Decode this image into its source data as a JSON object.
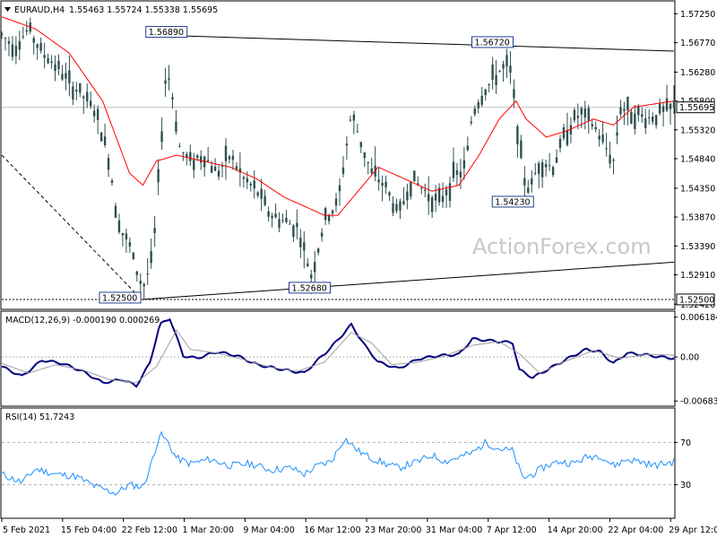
{
  "chart_data": [
    {
      "type": "candlestick",
      "header": {
        "symbol": "EURAUD,H4",
        "ohlc": "1.55463 1.55724 1.55338 1.55695"
      },
      "watermark": "ActionForex.com",
      "ylim": [
        1.5235,
        1.5745
      ],
      "y_ticks": [
        "1.57250",
        "1.56770",
        "1.56280",
        "1.55800",
        "1.55320",
        "1.54840",
        "1.54350",
        "1.53870",
        "1.53390",
        "1.52910",
        "1.52420"
      ],
      "price_label": "1.55695",
      "support_label": "1.52500",
      "annotations": [
        {
          "text": "1.56890",
          "value": 1.5689,
          "t": 0.245
        },
        {
          "text": "1.56720",
          "value": 1.5672,
          "t": 0.73
        },
        {
          "text": "1.54230",
          "value": 1.5423,
          "t": 0.775
        },
        {
          "text": "1.52500",
          "value": 1.525,
          "t": 0.208
        },
        {
          "text": "1.52680",
          "value": 1.5268,
          "t": 0.458
        }
      ],
      "lines": [
        {
          "name": "upper-trendline",
          "from": [
            0.245,
            1.5689
          ],
          "to": [
            1.0,
            1.5663
          ]
        },
        {
          "name": "lower-trendline",
          "from": [
            0.208,
            1.525
          ],
          "to": [
            1.0,
            1.5312
          ]
        },
        {
          "name": "support-dotted",
          "from": [
            0.0,
            1.525
          ],
          "to": [
            1.0,
            1.525
          ]
        },
        {
          "name": "dashed-trend",
          "from": [
            0.0,
            1.549
          ],
          "to": [
            0.208,
            1.525
          ]
        }
      ],
      "close_path": [
        [
          0.0,
          1.569
        ],
        [
          0.02,
          1.567
        ],
        [
          0.04,
          1.57
        ],
        [
          0.06,
          1.566
        ],
        [
          0.08,
          1.564
        ],
        [
          0.1,
          1.561
        ],
        [
          0.12,
          1.559
        ],
        [
          0.14,
          1.556
        ],
        [
          0.16,
          1.548
        ],
        [
          0.17,
          1.54
        ],
        [
          0.18,
          1.536
        ],
        [
          0.19,
          1.534
        ],
        [
          0.2,
          1.53
        ],
        [
          0.21,
          1.527
        ],
        [
          0.225,
          1.532
        ],
        [
          0.235,
          1.548
        ],
        [
          0.245,
          1.564
        ],
        [
          0.255,
          1.558
        ],
        [
          0.265,
          1.55
        ],
        [
          0.28,
          1.548
        ],
        [
          0.3,
          1.549
        ],
        [
          0.32,
          1.546
        ],
        [
          0.34,
          1.549
        ],
        [
          0.36,
          1.545
        ],
        [
          0.38,
          1.543
        ],
        [
          0.4,
          1.539
        ],
        [
          0.42,
          1.538
        ],
        [
          0.44,
          1.537
        ],
        [
          0.46,
          1.529
        ],
        [
          0.47,
          1.533
        ],
        [
          0.48,
          1.538
        ],
        [
          0.5,
          1.541
        ],
        [
          0.52,
          1.556
        ],
        [
          0.535,
          1.551
        ],
        [
          0.55,
          1.546
        ],
        [
          0.57,
          1.544
        ],
        [
          0.59,
          1.539
        ],
        [
          0.61,
          1.545
        ],
        [
          0.63,
          1.543
        ],
        [
          0.65,
          1.541
        ],
        [
          0.67,
          1.545
        ],
        [
          0.69,
          1.547
        ],
        [
          0.7,
          1.556
        ],
        [
          0.72,
          1.56
        ],
        [
          0.74,
          1.563
        ],
        [
          0.755,
          1.564
        ],
        [
          0.765,
          1.556
        ],
        [
          0.775,
          1.546
        ],
        [
          0.785,
          1.543
        ],
        [
          0.8,
          1.548
        ],
        [
          0.82,
          1.547
        ],
        [
          0.84,
          1.553
        ],
        [
          0.86,
          1.556
        ],
        [
          0.88,
          1.554
        ],
        [
          0.9,
          1.55
        ],
        [
          0.91,
          1.548
        ],
        [
          0.92,
          1.557
        ],
        [
          0.94,
          1.556
        ],
        [
          0.96,
          1.555
        ],
        [
          0.98,
          1.556
        ],
        [
          1.0,
          1.5569
        ]
      ],
      "ma_path": [
        [
          0.0,
          1.572
        ],
        [
          0.05,
          1.57
        ],
        [
          0.1,
          1.566
        ],
        [
          0.15,
          1.558
        ],
        [
          0.19,
          1.546
        ],
        [
          0.21,
          1.544
        ],
        [
          0.23,
          1.548
        ],
        [
          0.26,
          1.549
        ],
        [
          0.3,
          1.548
        ],
        [
          0.34,
          1.547
        ],
        [
          0.38,
          1.545
        ],
        [
          0.42,
          1.542
        ],
        [
          0.46,
          1.54
        ],
        [
          0.48,
          1.539
        ],
        [
          0.5,
          1.539
        ],
        [
          0.53,
          1.543
        ],
        [
          0.56,
          1.547
        ],
        [
          0.6,
          1.545
        ],
        [
          0.64,
          1.543
        ],
        [
          0.68,
          1.544
        ],
        [
          0.71,
          1.549
        ],
        [
          0.74,
          1.555
        ],
        [
          0.765,
          1.558
        ],
        [
          0.78,
          1.555
        ],
        [
          0.81,
          1.552
        ],
        [
          0.84,
          1.553
        ],
        [
          0.88,
          1.555
        ],
        [
          0.91,
          1.554
        ],
        [
          0.94,
          1.557
        ],
        [
          1.0,
          1.558
        ]
      ],
      "x_ticks": [
        "5 Feb 2021",
        "15 Feb 04:00",
        "22 Feb 12:00",
        "1 Mar 20:00",
        "9 Mar 04:00",
        "16 Mar 12:00",
        "23 Mar 20:00",
        "31 Mar 04:00",
        "7 Apr 12:00",
        "14 Apr 20:00",
        "22 Apr 04:00",
        "29 Apr 12:00"
      ],
      "colors": {
        "candle": "#2f4f4f",
        "ma": "#ff0000",
        "label_border": "#1f3f8f",
        "grid": "#c0c0c0"
      }
    },
    {
      "type": "line",
      "title": "MACD(12,26,9) -0.000190 0.000269",
      "ylim": [
        -0.0075,
        0.0067
      ],
      "y_ticks": [
        "0.006184",
        "0.00",
        "-0.006837"
      ],
      "price_label": "0.00",
      "series": [
        {
          "name": "MACD",
          "color": "#000080",
          "points": [
            [
              0.0,
              -0.0015
            ],
            [
              0.03,
              -0.003
            ],
            [
              0.06,
              -0.0005
            ],
            [
              0.09,
              -0.001
            ],
            [
              0.12,
              -0.0022
            ],
            [
              0.15,
              -0.004
            ],
            [
              0.18,
              -0.0035
            ],
            [
              0.2,
              -0.0045
            ],
            [
              0.22,
              -0.001
            ],
            [
              0.235,
              0.005
            ],
            [
              0.25,
              0.006
            ],
            [
              0.27,
              0.0002
            ],
            [
              0.29,
              -0.0002
            ],
            [
              0.32,
              0.0008
            ],
            [
              0.35,
              0.0002
            ],
            [
              0.38,
              -0.0012
            ],
            [
              0.42,
              -0.002
            ],
            [
              0.45,
              -0.0025
            ],
            [
              0.47,
              -0.0005
            ],
            [
              0.49,
              0.0015
            ],
            [
              0.52,
              0.005
            ],
            [
              0.54,
              0.0018
            ],
            [
              0.56,
              -0.0008
            ],
            [
              0.59,
              -0.0018
            ],
            [
              0.62,
              -0.0003
            ],
            [
              0.65,
              0.0002
            ],
            [
              0.68,
              0.0004
            ],
            [
              0.7,
              0.0028
            ],
            [
              0.73,
              0.0025
            ],
            [
              0.76,
              0.0022
            ],
            [
              0.77,
              -0.002
            ],
            [
              0.79,
              -0.0032
            ],
            [
              0.82,
              -0.0015
            ],
            [
              0.85,
              0.0002
            ],
            [
              0.87,
              0.0012
            ],
            [
              0.89,
              0.0008
            ],
            [
              0.91,
              -0.001
            ],
            [
              0.93,
              0.0006
            ],
            [
              0.96,
              0.0003
            ],
            [
              0.98,
              0.0
            ],
            [
              1.0,
              -0.0002
            ]
          ]
        },
        {
          "name": "Signal",
          "color": "#a0a0a0",
          "points": [
            [
              0.0,
              -0.001
            ],
            [
              0.04,
              -0.0025
            ],
            [
              0.08,
              -0.0012
            ],
            [
              0.12,
              -0.002
            ],
            [
              0.16,
              -0.0035
            ],
            [
              0.2,
              -0.004
            ],
            [
              0.23,
              -0.0015
            ],
            [
              0.26,
              0.0042
            ],
            [
              0.28,
              0.0012
            ],
            [
              0.32,
              0.0006
            ],
            [
              0.36,
              -0.0004
            ],
            [
              0.4,
              -0.0016
            ],
            [
              0.44,
              -0.0022
            ],
            [
              0.48,
              -0.0008
            ],
            [
              0.52,
              0.0038
            ],
            [
              0.55,
              0.0022
            ],
            [
              0.58,
              -0.0012
            ],
            [
              0.62,
              -0.0008
            ],
            [
              0.66,
              0.0002
            ],
            [
              0.7,
              0.0018
            ],
            [
              0.74,
              0.0024
            ],
            [
              0.77,
              0.0005
            ],
            [
              0.8,
              -0.0025
            ],
            [
              0.84,
              -0.0006
            ],
            [
              0.88,
              0.001
            ],
            [
              0.92,
              -0.0002
            ],
            [
              0.96,
              0.0004
            ],
            [
              1.0,
              0.0003
            ]
          ]
        }
      ]
    },
    {
      "type": "line",
      "title": "RSI(14) 51.7243",
      "ylim": [
        0,
        100
      ],
      "y_ticks": [
        "70",
        "30"
      ],
      "levels": [
        70,
        30
      ],
      "series": [
        {
          "name": "RSI",
          "color": "#1e90ff",
          "points": [
            [
              0.0,
              40
            ],
            [
              0.03,
              32
            ],
            [
              0.05,
              45
            ],
            [
              0.08,
              40
            ],
            [
              0.11,
              38
            ],
            [
              0.14,
              28
            ],
            [
              0.17,
              22
            ],
            [
              0.19,
              30
            ],
            [
              0.21,
              28
            ],
            [
              0.22,
              45
            ],
            [
              0.235,
              78
            ],
            [
              0.245,
              72
            ],
            [
              0.26,
              55
            ],
            [
              0.28,
              50
            ],
            [
              0.31,
              54
            ],
            [
              0.34,
              48
            ],
            [
              0.37,
              50
            ],
            [
              0.4,
              44
            ],
            [
              0.43,
              46
            ],
            [
              0.45,
              40
            ],
            [
              0.47,
              48
            ],
            [
              0.49,
              52
            ],
            [
              0.51,
              74
            ],
            [
              0.53,
              62
            ],
            [
              0.55,
              55
            ],
            [
              0.57,
              50
            ],
            [
              0.59,
              46
            ],
            [
              0.62,
              52
            ],
            [
              0.64,
              58
            ],
            [
              0.66,
              52
            ],
            [
              0.68,
              56
            ],
            [
              0.7,
              60
            ],
            [
              0.72,
              70
            ],
            [
              0.74,
              64
            ],
            [
              0.76,
              62
            ],
            [
              0.775,
              36
            ],
            [
              0.79,
              40
            ],
            [
              0.81,
              48
            ],
            [
              0.83,
              52
            ],
            [
              0.85,
              50
            ],
            [
              0.87,
              56
            ],
            [
              0.89,
              58
            ],
            [
              0.91,
              48
            ],
            [
              0.93,
              54
            ],
            [
              0.95,
              52
            ],
            [
              0.97,
              48
            ],
            [
              1.0,
              51.7
            ]
          ]
        }
      ]
    }
  ]
}
